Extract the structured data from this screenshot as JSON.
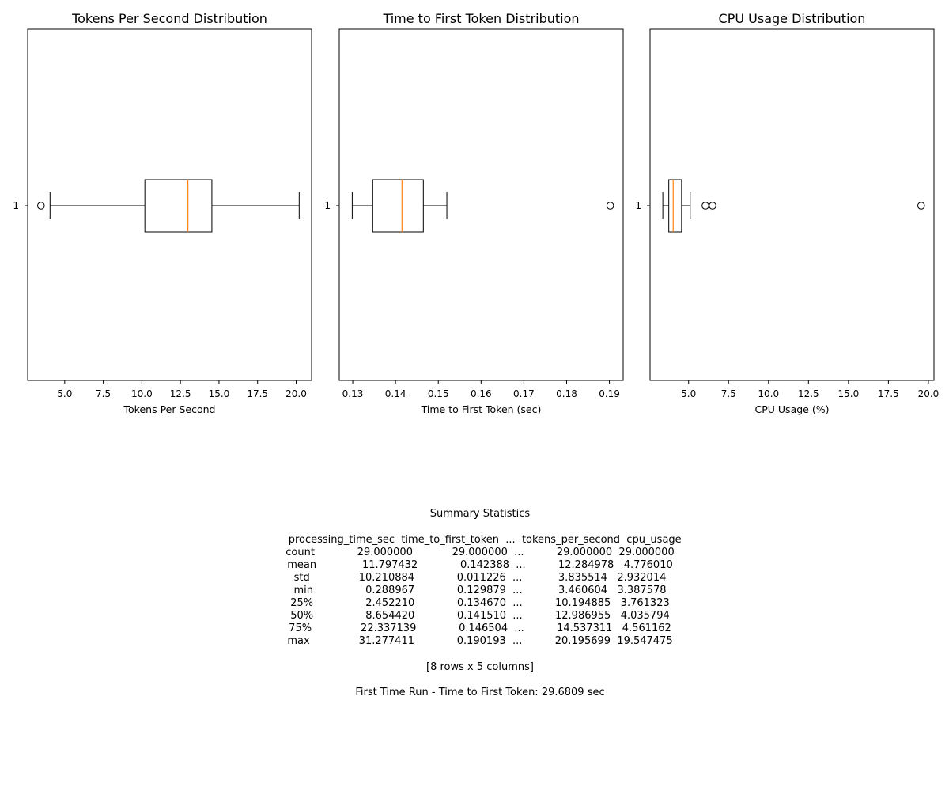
{
  "chart_data": [
    {
      "type": "boxplot",
      "title": "Tokens Per Second Distribution",
      "xlabel": "Tokens Per Second",
      "ylabel": "",
      "orientation": "horizontal",
      "category": "1",
      "xlim": [
        2.6,
        21.0
      ],
      "xticks": [
        5.0,
        7.5,
        10.0,
        12.5,
        15.0,
        17.5,
        20.0
      ],
      "tick_labels": [
        "5.0",
        "7.5",
        "10.0",
        "12.5",
        "15.0",
        "17.5",
        "20.0"
      ],
      "box": {
        "whisker_low": 4.05,
        "q1": 10.194885,
        "median": 12.986955,
        "q3": 14.537311,
        "whisker_high": 20.195699
      },
      "outliers": [
        3.460604
      ]
    },
    {
      "type": "boxplot",
      "title": "Time to First Token Distribution",
      "xlabel": "Time to First Token (sec)",
      "ylabel": "",
      "orientation": "horizontal",
      "category": "1",
      "xlim": [
        0.12685,
        0.19322
      ],
      "xticks": [
        0.13,
        0.14,
        0.15,
        0.16,
        0.17,
        0.18,
        0.19
      ],
      "tick_labels": [
        "0.13",
        "0.14",
        "0.15",
        "0.16",
        "0.17",
        "0.18",
        "0.19"
      ],
      "box": {
        "whisker_low": 0.129879,
        "q1": 0.13467,
        "median": 0.14151,
        "q3": 0.146504,
        "whisker_high": 0.152
      },
      "outliers": [
        0.190193
      ]
    },
    {
      "type": "boxplot",
      "title": "CPU Usage Distribution",
      "xlabel": "CPU Usage (%)",
      "ylabel": "",
      "orientation": "horizontal",
      "category": "1",
      "xlim": [
        2.59,
        20.35
      ],
      "xticks": [
        5.0,
        7.5,
        10.0,
        12.5,
        15.0,
        17.5,
        20.0
      ],
      "tick_labels": [
        "5.0",
        "7.5",
        "10.0",
        "12.5",
        "15.0",
        "17.5",
        "20.0"
      ],
      "box": {
        "whisker_low": 3.387578,
        "q1": 3.761323,
        "median": 4.035794,
        "q3": 4.561162,
        "whisker_high": 5.1
      },
      "outliers": [
        6.05,
        6.5,
        19.547475
      ]
    }
  ],
  "summary": {
    "title": "Summary Statistics",
    "lines": [
      "   processing_time_sec  time_to_first_token  ...  tokens_per_second  cpu_usage",
      "count             29.000000            29.000000  ...          29.000000  29.000000",
      "mean              11.797432             0.142388  ...          12.284978   4.776010",
      "std               10.210884             0.011226  ...           3.835514   2.932014",
      "min                0.288967             0.129879  ...           3.460604   3.387578",
      "25%                2.452210             0.134670  ...          10.194885   3.761323",
      "50%                8.654420             0.141510  ...          12.986955   4.035794",
      "75%               22.337139             0.146504  ...          14.537311   4.561162",
      "max               31.277411             0.190193  ...          20.195699  19.547475"
    ],
    "footer": "[8 rows x 5 columns]",
    "first_run": "First Time Run - Time to First Token: 29.6809 sec"
  },
  "colors": {
    "box": "#000000",
    "median": "#ff7f0e",
    "axis": "#000000"
  }
}
